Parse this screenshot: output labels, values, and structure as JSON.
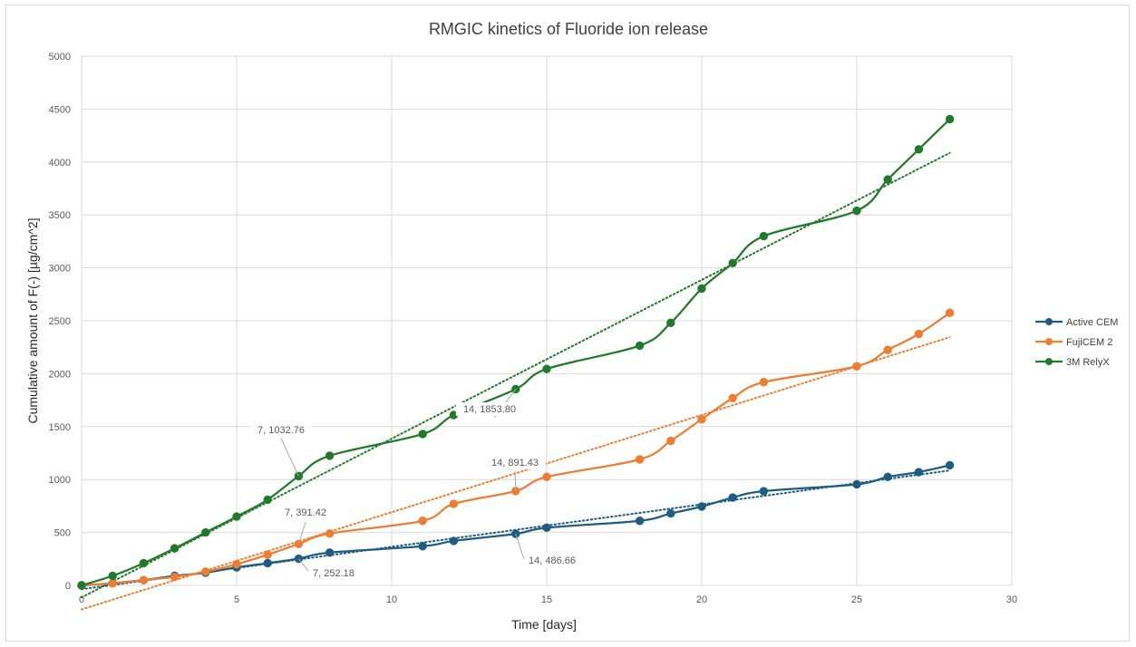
{
  "chart_data": {
    "type": "line",
    "title": "RMGIC kinetics of Fluoride ion release",
    "xlabel": "Time [days]",
    "ylabel": "Cumulative amount of F(-) [µg/cm^2]",
    "xlim": [
      0,
      30
    ],
    "ylim": [
      0,
      5000
    ],
    "xticks": [
      0,
      5,
      10,
      15,
      20,
      25,
      30
    ],
    "yticks": [
      0,
      500,
      1000,
      1500,
      2000,
      2500,
      3000,
      3500,
      4000,
      4500,
      5000
    ],
    "grid": true,
    "legend_position": "right",
    "trendline": "linear, dotted",
    "series": [
      {
        "name": "Active CEM",
        "color": "#1f5c82",
        "x": [
          0,
          1,
          2,
          3,
          4,
          5,
          6,
          7,
          8,
          11,
          12,
          14,
          15,
          18,
          19,
          20,
          21,
          22,
          25,
          26,
          27,
          28
        ],
        "y": [
          0,
          20,
          50,
          90,
          120,
          170,
          210,
          252.18,
          310,
          370,
          420,
          486.66,
          545,
          610,
          680,
          745,
          830,
          890,
          955,
          1025,
          1070,
          1135
        ]
      },
      {
        "name": "FujiCEM 2",
        "color": "#ed7d31",
        "x": [
          0,
          1,
          2,
          3,
          4,
          5,
          6,
          7,
          8,
          11,
          12,
          14,
          15,
          18,
          19,
          20,
          21,
          22,
          25,
          26,
          27,
          28
        ],
        "y": [
          0,
          20,
          50,
          80,
          130,
          200,
          290,
          391.42,
          490,
          610,
          770,
          891.43,
          1025,
          1190,
          1365,
          1570,
          1770,
          1920,
          2070,
          2225,
          2375,
          2575
        ]
      },
      {
        "name": "3M RelyX",
        "color": "#217a2b",
        "x": [
          0,
          1,
          2,
          3,
          4,
          5,
          6,
          7,
          8,
          11,
          12,
          14,
          15,
          18,
          19,
          20,
          21,
          22,
          25,
          26,
          27,
          28
        ],
        "y": [
          0,
          90,
          210,
          350,
          500,
          650,
          810,
          1032.76,
          1225,
          1430,
          1610,
          1853.8,
          2045,
          2265,
          2480,
          2805,
          3045,
          3300,
          3540,
          3835,
          4120,
          4405
        ]
      }
    ],
    "annotations": [
      {
        "label": "7, 1032.76",
        "series": "3M RelyX",
        "x": 7,
        "y": 1032.76
      },
      {
        "label": "14, 1853.80",
        "series": "3M RelyX",
        "x": 14,
        "y": 1853.8
      },
      {
        "label": "7, 391.42",
        "series": "FujiCEM 2",
        "x": 7,
        "y": 391.42
      },
      {
        "label": "14, 891.43",
        "series": "FujiCEM 2",
        "x": 14,
        "y": 891.43
      },
      {
        "label": "7, 252.18",
        "series": "Active CEM",
        "x": 7,
        "y": 252.18
      },
      {
        "label": "14, 486.66",
        "series": "Active CEM",
        "x": 14,
        "y": 486.66
      }
    ]
  }
}
